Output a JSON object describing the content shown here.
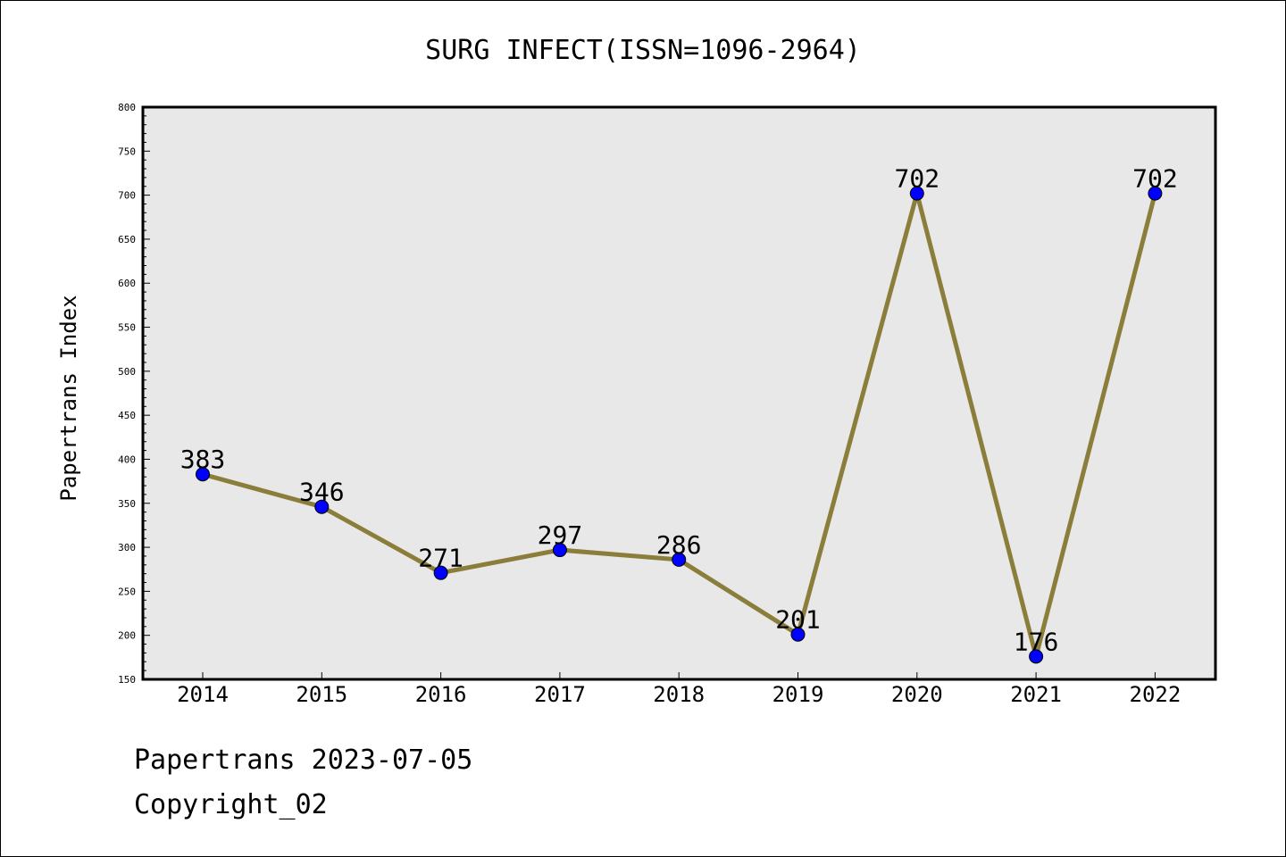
{
  "chart_data": {
    "type": "line",
    "title": "SURG INFECT(ISSN=1096-2964)",
    "xlabel": "",
    "ylabel": "Papertrans Index",
    "categories": [
      "2014",
      "2015",
      "2016",
      "2017",
      "2018",
      "2019",
      "2020",
      "2021",
      "2022"
    ],
    "series": [
      {
        "values": [
          383,
          346,
          271,
          297,
          286,
          201,
          702,
          176,
          702
        ]
      }
    ],
    "data_labels": [
      "383",
      "346",
      "271",
      "297",
      "286",
      "201",
      "702",
      "176",
      "702"
    ],
    "ylim": [
      150,
      800
    ],
    "yticks": [
      "150",
      "200",
      "250",
      "300",
      "350",
      "400",
      "450",
      "500",
      "550",
      "600",
      "650",
      "700",
      "750",
      "800"
    ],
    "grid": false,
    "legend": "none",
    "colors": {
      "line": "#8b7d3a",
      "marker": "#0000ff",
      "plot_background": "#e8e8e8"
    }
  },
  "footer": {
    "date_text": "Papertrans 2023-07-05",
    "copyright_text": "Copyright_02"
  }
}
